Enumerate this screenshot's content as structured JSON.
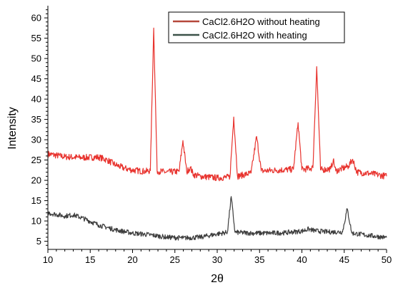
{
  "chart_data": {
    "type": "line",
    "xlabel": "2θ",
    "ylabel": "Intensity",
    "xlim": [
      10,
      50
    ],
    "ylim": [
      3,
      63
    ],
    "x_ticks": [
      10,
      15,
      20,
      25,
      30,
      35,
      40,
      45,
      50
    ],
    "y_ticks": [
      5,
      10,
      15,
      20,
      25,
      30,
      35,
      40,
      45,
      50,
      55,
      60
    ],
    "grid": false,
    "legend_position": "top-right",
    "series": [
      {
        "name": "CaCl2.6H2O without heating",
        "color": "#e8332e",
        "line_color": "#b5473a",
        "noise": 0.8,
        "points": [
          [
            10,
            26.5
          ],
          [
            12,
            25.8
          ],
          [
            14,
            25.6
          ],
          [
            16,
            25.7
          ],
          [
            17,
            25.0
          ],
          [
            18,
            23.8
          ],
          [
            19,
            23.0
          ],
          [
            20,
            22.5
          ],
          [
            21.5,
            22.2
          ],
          [
            22.1,
            22.4
          ],
          [
            22.5,
            57.5
          ],
          [
            22.9,
            22.3
          ],
          [
            24,
            22.0
          ],
          [
            25.5,
            22.2
          ],
          [
            25.95,
            29.8
          ],
          [
            26.4,
            22.0
          ],
          [
            26.8,
            23.2
          ],
          [
            27.2,
            21.4
          ],
          [
            28,
            21.0
          ],
          [
            30,
            20.6
          ],
          [
            31.5,
            20.8
          ],
          [
            31.95,
            35.6
          ],
          [
            32.4,
            21.0
          ],
          [
            34,
            21.8
          ],
          [
            34.65,
            30.8
          ],
          [
            35.2,
            22.3
          ],
          [
            37,
            22.5
          ],
          [
            39,
            22.7
          ],
          [
            39.55,
            34.2
          ],
          [
            40.0,
            22.6
          ],
          [
            41.3,
            23.1
          ],
          [
            41.75,
            48.0
          ],
          [
            42.2,
            22.6
          ],
          [
            43.4,
            22.8
          ],
          [
            43.7,
            25.0
          ],
          [
            44,
            22.3
          ],
          [
            45.5,
            23.5
          ],
          [
            46,
            25.2
          ],
          [
            46.5,
            22.0
          ],
          [
            48,
            21.7
          ],
          [
            50,
            21.0
          ]
        ]
      },
      {
        "name": "CaCl2.6H2O with heating",
        "color": "#3d3d3d",
        "line_color": "#3b5249",
        "noise": 0.6,
        "points": [
          [
            10,
            12.0
          ],
          [
            12,
            11.2
          ],
          [
            13,
            11.5
          ],
          [
            14,
            10.8
          ],
          [
            16,
            9.0
          ],
          [
            18,
            7.8
          ],
          [
            20,
            7.0
          ],
          [
            22,
            6.6
          ],
          [
            24,
            6.0
          ],
          [
            26,
            5.8
          ],
          [
            28,
            6.0
          ],
          [
            30,
            6.8
          ],
          [
            31.2,
            7.2
          ],
          [
            31.65,
            16.0
          ],
          [
            32.1,
            7.2
          ],
          [
            34,
            7.0
          ],
          [
            36,
            7.0
          ],
          [
            38,
            7.1
          ],
          [
            40,
            7.5
          ],
          [
            40.8,
            8.0
          ],
          [
            41.5,
            7.6
          ],
          [
            43,
            7.3
          ],
          [
            44.8,
            7.3
          ],
          [
            45.35,
            13.0
          ],
          [
            45.9,
            7.0
          ],
          [
            48,
            6.4
          ],
          [
            50,
            5.9
          ]
        ]
      }
    ]
  }
}
